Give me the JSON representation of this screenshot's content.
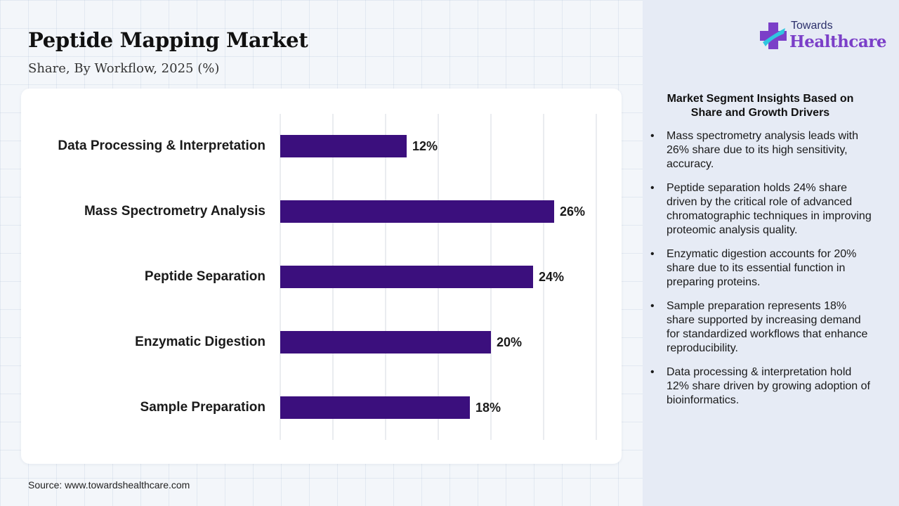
{
  "header": {
    "title": "Peptide Mapping Market",
    "subtitle": "Share, By Workflow, 2025 (%)"
  },
  "logo": {
    "line1": "Towards",
    "line2": "Healthcare",
    "icon": "cross-logo-icon"
  },
  "colors": {
    "bar": "#3b0f7d",
    "gridline": "#d6d9e0",
    "logo_cyan": "#2fc6e0",
    "logo_purple": "#7b3fc8"
  },
  "chart_data": {
    "type": "bar",
    "orientation": "horizontal",
    "categories": [
      "Data Processing & Interpretation",
      "Mass Spectrometry Analysis",
      "Peptide Separation",
      "Enzymatic Digestion",
      "Sample Preparation"
    ],
    "values": [
      12,
      26,
      24,
      20,
      18
    ],
    "value_labels": [
      "12%",
      "26%",
      "24%",
      "20%",
      "18%"
    ],
    "unit": "%",
    "xlim": [
      0,
      30
    ],
    "grid": true,
    "legend": "none"
  },
  "insights": {
    "title": "Market Segment Insights Based on Share and Growth Drivers",
    "bullet_glyph": "•",
    "items": [
      "Mass spectrometry analysis leads with 26% share due to its high sensitivity, accuracy.",
      "Peptide separation holds 24% share driven by the critical role of advanced chromatographic techniques in improving proteomic analysis quality.",
      "Enzymatic digestion accounts for 20% share due to its essential function in preparing proteins.",
      "Sample preparation represents 18% share supported by increasing demand for standardized workflows that enhance reproducibility.",
      "Data processing & interpretation hold 12% share driven by growing adoption of bioinformatics."
    ]
  },
  "footer": {
    "source": "Source: www.towardshealthcare.com"
  }
}
